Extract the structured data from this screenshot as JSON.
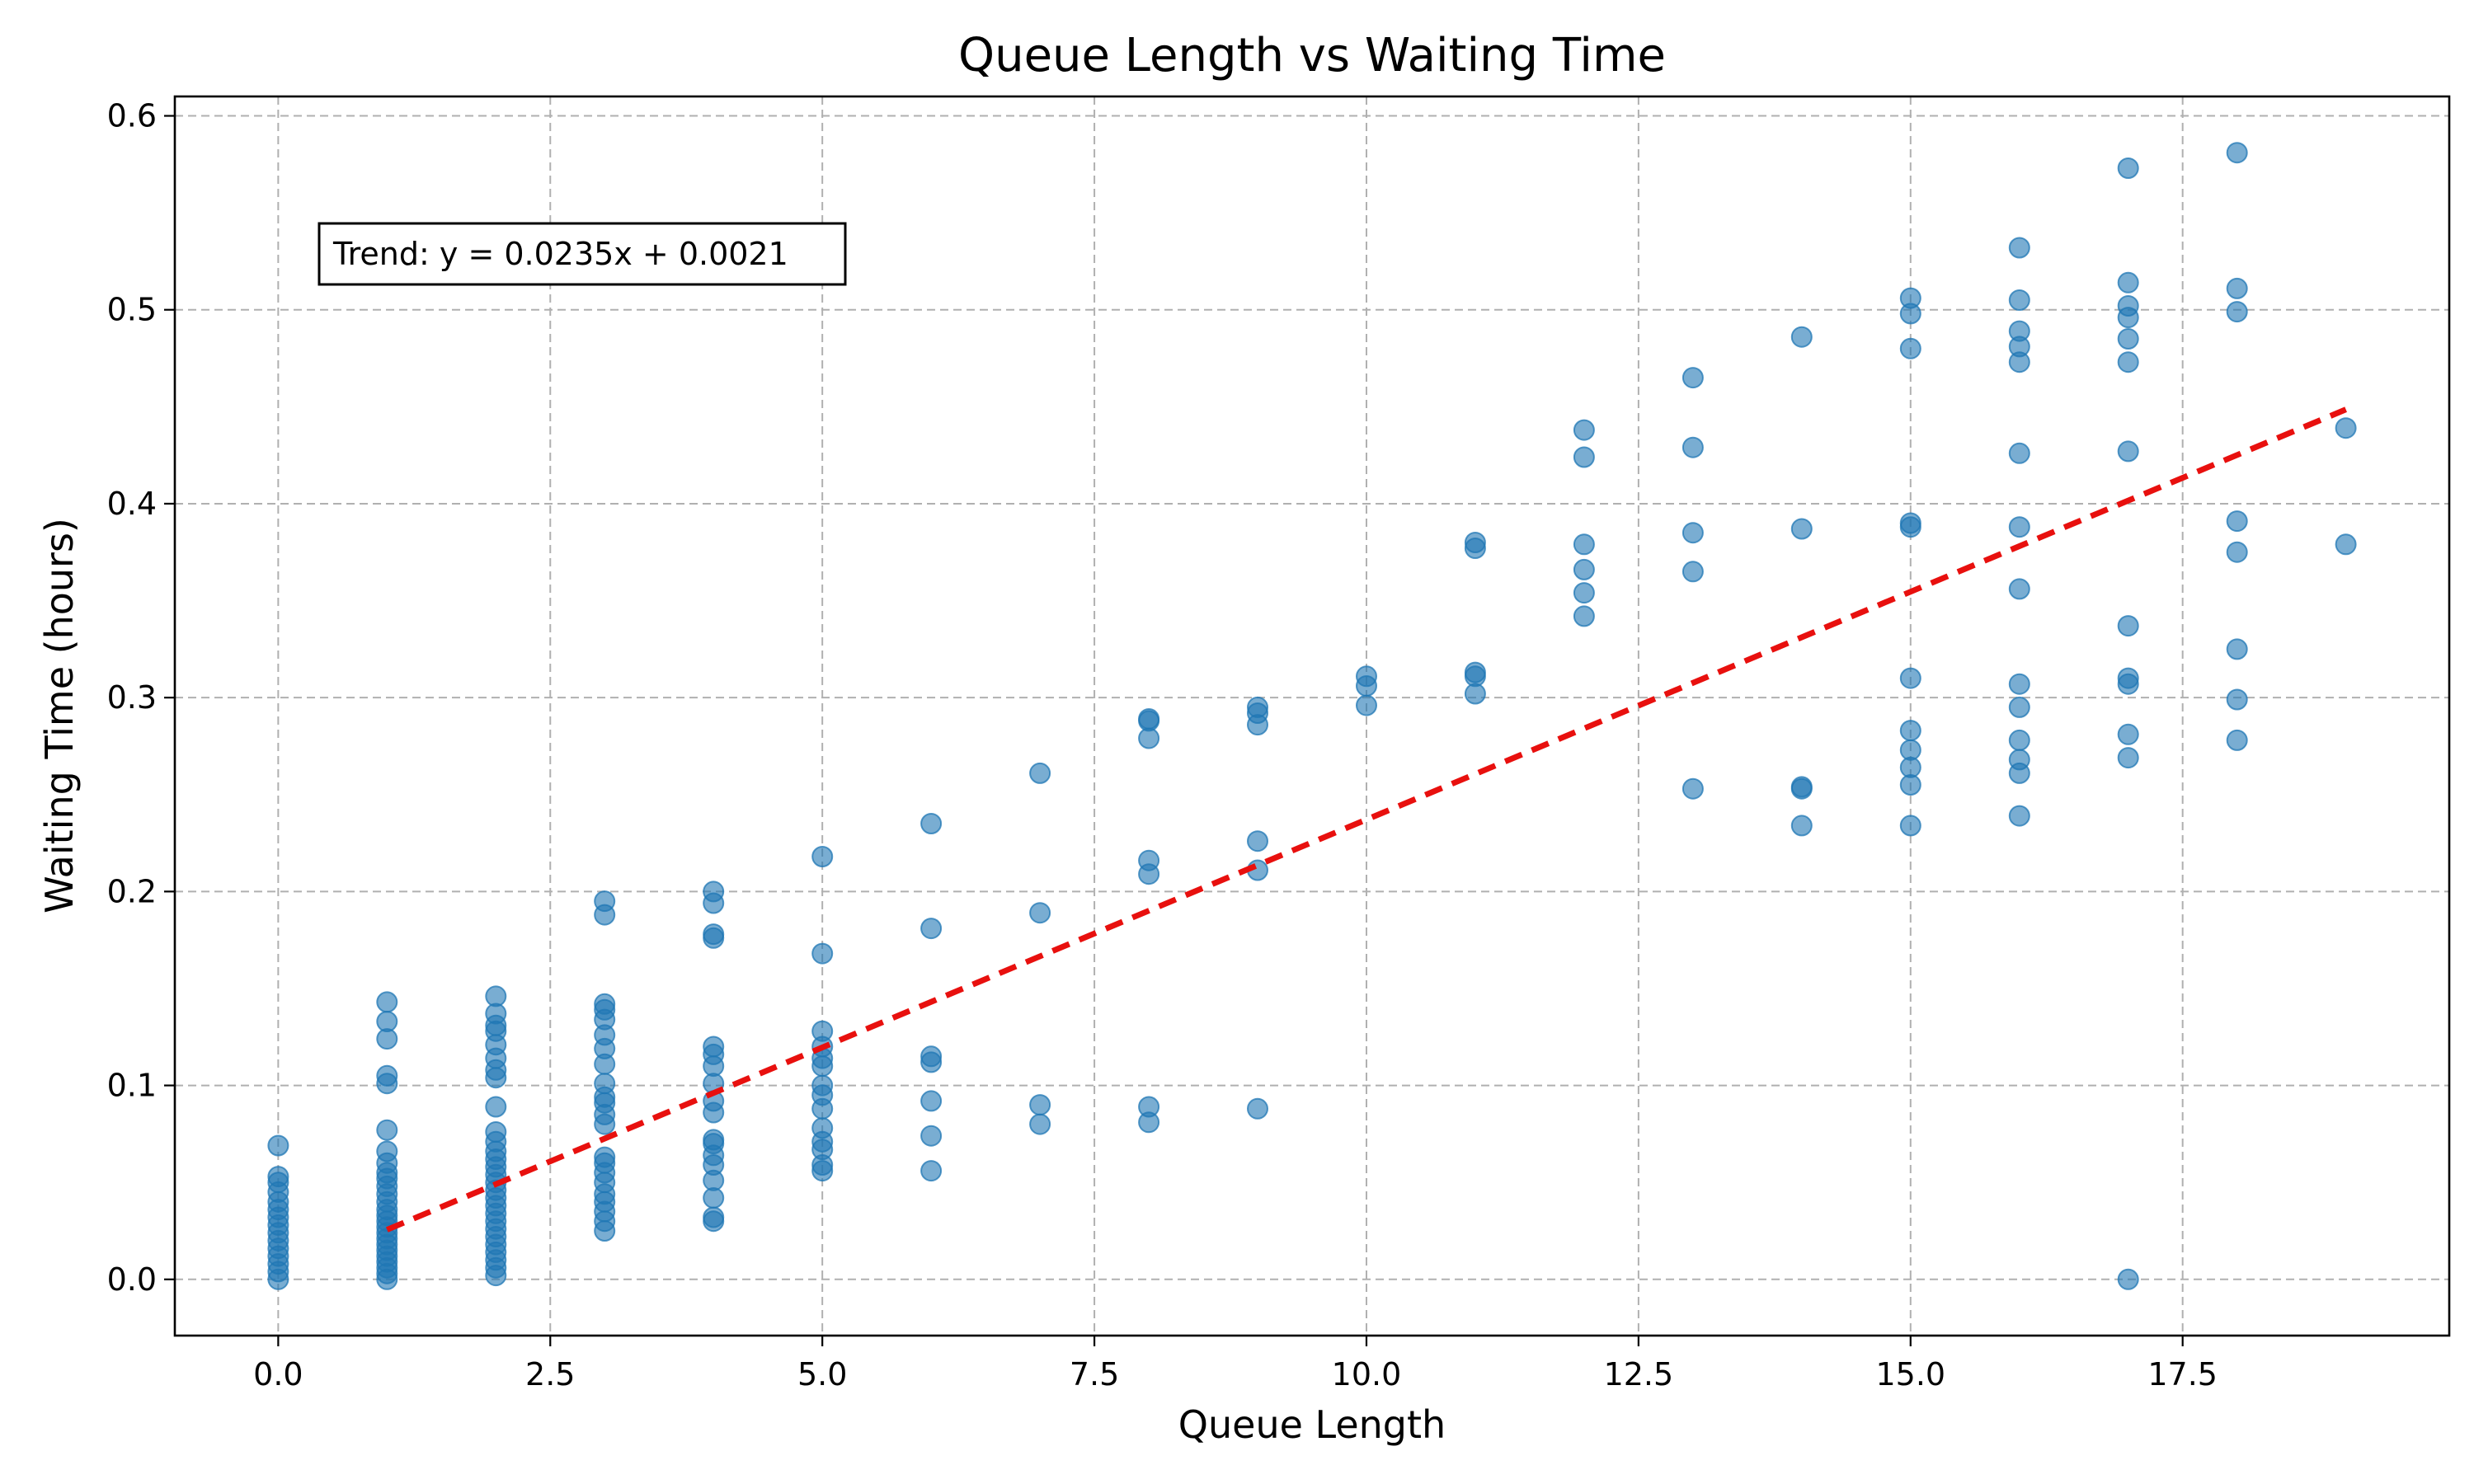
{
  "chart_data": {
    "type": "scatter",
    "title": "Queue Length vs Waiting Time",
    "xlabel": "Queue Length",
    "ylabel": "Waiting Time (hours)",
    "xlim": [
      -0.95,
      19.95
    ],
    "ylim": [
      -0.029,
      0.61
    ],
    "xticks": [
      0.0,
      2.5,
      5.0,
      7.5,
      10.0,
      12.5,
      15.0,
      17.5
    ],
    "xtick_labels": [
      "0.0",
      "2.5",
      "5.0",
      "7.5",
      "10.0",
      "12.5",
      "15.0",
      "17.5"
    ],
    "yticks": [
      0.0,
      0.1,
      0.2,
      0.3,
      0.4,
      0.5,
      0.6
    ],
    "ytick_labels": [
      "0.0",
      "0.1",
      "0.2",
      "0.3",
      "0.4",
      "0.5",
      "0.6"
    ],
    "grid": true,
    "point_color": "#1f77b4",
    "trend_color": "#e8100e",
    "annotation": "Trend: y = 0.0235x + 0.0021",
    "annotation_position": "top-left",
    "trend": {
      "slope": 0.0235,
      "intercept": 0.0021,
      "x_range": [
        1,
        19
      ]
    },
    "points": [
      [
        0,
        0.0
      ],
      [
        0,
        0.004
      ],
      [
        0,
        0.008
      ],
      [
        0,
        0.012
      ],
      [
        0,
        0.016
      ],
      [
        0,
        0.02
      ],
      [
        0,
        0.024
      ],
      [
        0,
        0.028
      ],
      [
        0,
        0.032
      ],
      [
        0,
        0.036
      ],
      [
        0,
        0.04
      ],
      [
        0,
        0.045
      ],
      [
        0,
        0.05
      ],
      [
        0,
        0.053
      ],
      [
        0,
        0.069
      ],
      [
        1,
        0.0
      ],
      [
        1,
        0.003
      ],
      [
        1,
        0.006
      ],
      [
        1,
        0.009
      ],
      [
        1,
        0.012
      ],
      [
        1,
        0.015
      ],
      [
        1,
        0.018
      ],
      [
        1,
        0.021
      ],
      [
        1,
        0.024
      ],
      [
        1,
        0.027
      ],
      [
        1,
        0.03
      ],
      [
        1,
        0.033
      ],
      [
        1,
        0.036
      ],
      [
        1,
        0.04
      ],
      [
        1,
        0.044
      ],
      [
        1,
        0.048
      ],
      [
        1,
        0.052
      ],
      [
        1,
        0.055
      ],
      [
        1,
        0.06
      ],
      [
        1,
        0.066
      ],
      [
        1,
        0.077
      ],
      [
        1,
        0.101
      ],
      [
        1,
        0.105
      ],
      [
        1,
        0.124
      ],
      [
        1,
        0.133
      ],
      [
        1,
        0.143
      ],
      [
        2,
        0.002
      ],
      [
        2,
        0.006
      ],
      [
        2,
        0.01
      ],
      [
        2,
        0.014
      ],
      [
        2,
        0.018
      ],
      [
        2,
        0.022
      ],
      [
        2,
        0.026
      ],
      [
        2,
        0.03
      ],
      [
        2,
        0.034
      ],
      [
        2,
        0.038
      ],
      [
        2,
        0.042
      ],
      [
        2,
        0.046
      ],
      [
        2,
        0.05
      ],
      [
        2,
        0.054
      ],
      [
        2,
        0.058
      ],
      [
        2,
        0.062
      ],
      [
        2,
        0.066
      ],
      [
        2,
        0.071
      ],
      [
        2,
        0.076
      ],
      [
        2,
        0.089
      ],
      [
        2,
        0.104
      ],
      [
        2,
        0.108
      ],
      [
        2,
        0.114
      ],
      [
        2,
        0.121
      ],
      [
        2,
        0.128
      ],
      [
        2,
        0.131
      ],
      [
        2,
        0.137
      ],
      [
        2,
        0.146
      ],
      [
        3,
        0.025
      ],
      [
        3,
        0.03
      ],
      [
        3,
        0.035
      ],
      [
        3,
        0.04
      ],
      [
        3,
        0.044
      ],
      [
        3,
        0.05
      ],
      [
        3,
        0.055
      ],
      [
        3,
        0.06
      ],
      [
        3,
        0.063
      ],
      [
        3,
        0.08
      ],
      [
        3,
        0.085
      ],
      [
        3,
        0.091
      ],
      [
        3,
        0.094
      ],
      [
        3,
        0.101
      ],
      [
        3,
        0.111
      ],
      [
        3,
        0.119
      ],
      [
        3,
        0.126
      ],
      [
        3,
        0.134
      ],
      [
        3,
        0.139
      ],
      [
        3,
        0.142
      ],
      [
        3,
        0.188
      ],
      [
        3,
        0.195
      ],
      [
        4,
        0.03
      ],
      [
        4,
        0.032
      ],
      [
        4,
        0.042
      ],
      [
        4,
        0.051
      ],
      [
        4,
        0.059
      ],
      [
        4,
        0.064
      ],
      [
        4,
        0.07
      ],
      [
        4,
        0.072
      ],
      [
        4,
        0.086
      ],
      [
        4,
        0.092
      ],
      [
        4,
        0.101
      ],
      [
        4,
        0.11
      ],
      [
        4,
        0.116
      ],
      [
        4,
        0.12
      ],
      [
        4,
        0.176
      ],
      [
        4,
        0.178
      ],
      [
        4,
        0.194
      ],
      [
        4,
        0.2
      ],
      [
        5,
        0.056
      ],
      [
        5,
        0.059
      ],
      [
        5,
        0.067
      ],
      [
        5,
        0.071
      ],
      [
        5,
        0.078
      ],
      [
        5,
        0.088
      ],
      [
        5,
        0.095
      ],
      [
        5,
        0.1
      ],
      [
        5,
        0.11
      ],
      [
        5,
        0.114
      ],
      [
        5,
        0.12
      ],
      [
        5,
        0.128
      ],
      [
        5,
        0.168
      ],
      [
        5,
        0.218
      ],
      [
        6,
        0.056
      ],
      [
        6,
        0.074
      ],
      [
        6,
        0.092
      ],
      [
        6,
        0.112
      ],
      [
        6,
        0.115
      ],
      [
        6,
        0.181
      ],
      [
        6,
        0.235
      ],
      [
        7,
        0.08
      ],
      [
        7,
        0.09
      ],
      [
        7,
        0.189
      ],
      [
        7,
        0.261
      ],
      [
        8,
        0.081
      ],
      [
        8,
        0.089
      ],
      [
        8,
        0.209
      ],
      [
        8,
        0.216
      ],
      [
        8,
        0.279
      ],
      [
        8,
        0.288
      ],
      [
        8,
        0.289
      ],
      [
        9,
        0.088
      ],
      [
        9,
        0.211
      ],
      [
        9,
        0.226
      ],
      [
        9,
        0.286
      ],
      [
        9,
        0.292
      ],
      [
        9,
        0.295
      ],
      [
        10,
        0.296
      ],
      [
        10,
        0.306
      ],
      [
        10,
        0.311
      ],
      [
        11,
        0.302
      ],
      [
        11,
        0.311
      ],
      [
        11,
        0.313
      ],
      [
        11,
        0.377
      ],
      [
        11,
        0.38
      ],
      [
        12,
        0.342
      ],
      [
        12,
        0.354
      ],
      [
        12,
        0.366
      ],
      [
        12,
        0.379
      ],
      [
        12,
        0.424
      ],
      [
        12,
        0.438
      ],
      [
        13,
        0.253
      ],
      [
        13,
        0.365
      ],
      [
        13,
        0.385
      ],
      [
        13,
        0.429
      ],
      [
        13,
        0.465
      ],
      [
        14,
        0.234
      ],
      [
        14,
        0.253
      ],
      [
        14,
        0.254
      ],
      [
        14,
        0.387
      ],
      [
        14,
        0.486
      ],
      [
        15,
        0.234
      ],
      [
        15,
        0.255
      ],
      [
        15,
        0.264
      ],
      [
        15,
        0.273
      ],
      [
        15,
        0.283
      ],
      [
        15,
        0.31
      ],
      [
        15,
        0.388
      ],
      [
        15,
        0.39
      ],
      [
        15,
        0.48
      ],
      [
        15,
        0.498
      ],
      [
        15,
        0.506
      ],
      [
        16,
        0.239
      ],
      [
        16,
        0.261
      ],
      [
        16,
        0.268
      ],
      [
        16,
        0.278
      ],
      [
        16,
        0.295
      ],
      [
        16,
        0.307
      ],
      [
        16,
        0.356
      ],
      [
        16,
        0.388
      ],
      [
        16,
        0.426
      ],
      [
        16,
        0.473
      ],
      [
        16,
        0.481
      ],
      [
        16,
        0.489
      ],
      [
        16,
        0.505
      ],
      [
        16,
        0.532
      ],
      [
        17,
        0.0
      ],
      [
        17,
        0.269
      ],
      [
        17,
        0.281
      ],
      [
        17,
        0.307
      ],
      [
        17,
        0.31
      ],
      [
        17,
        0.337
      ],
      [
        17,
        0.427
      ],
      [
        17,
        0.473
      ],
      [
        17,
        0.485
      ],
      [
        17,
        0.496
      ],
      [
        17,
        0.502
      ],
      [
        17,
        0.514
      ],
      [
        17,
        0.573
      ],
      [
        18,
        0.278
      ],
      [
        18,
        0.299
      ],
      [
        18,
        0.325
      ],
      [
        18,
        0.375
      ],
      [
        18,
        0.391
      ],
      [
        18,
        0.499
      ],
      [
        18,
        0.511
      ],
      [
        18,
        0.581
      ],
      [
        19,
        0.379
      ],
      [
        19,
        0.439
      ]
    ]
  }
}
